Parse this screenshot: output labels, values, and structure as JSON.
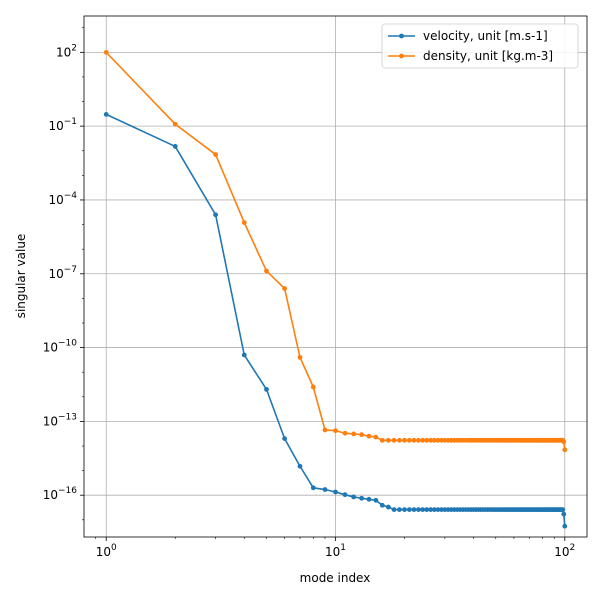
{
  "chart_data": {
    "type": "line",
    "xlabel": "mode index",
    "ylabel": "singular value",
    "xscale": "log",
    "yscale": "log",
    "xlim": [
      0.8,
      125
    ],
    "ylim": [
      2e-18,
      3000
    ],
    "grid": true,
    "legend_position": "top-right",
    "x_ticks": [
      {
        "value": 1,
        "base": "10",
        "exp": "0"
      },
      {
        "value": 10,
        "base": "10",
        "exp": "1"
      },
      {
        "value": 100,
        "base": "10",
        "exp": "2"
      }
    ],
    "y_ticks": [
      {
        "value": 1e-16,
        "base": "10",
        "exp": "−16"
      },
      {
        "value": 1e-13,
        "base": "10",
        "exp": "−13"
      },
      {
        "value": 1e-10,
        "base": "10",
        "exp": "−10"
      },
      {
        "value": 1e-07,
        "base": "10",
        "exp": "−7"
      },
      {
        "value": 0.0001,
        "base": "10",
        "exp": "−4"
      },
      {
        "value": 0.1,
        "base": "10",
        "exp": "−1"
      },
      {
        "value": 100,
        "base": "10",
        "exp": "2"
      }
    ],
    "series": [
      {
        "name": "velocity, unit [m.s-1]",
        "color": "#1f77b4",
        "x": [
          1,
          2,
          3,
          4,
          5,
          6,
          7,
          8,
          9,
          10,
          11,
          12,
          13,
          14,
          15,
          16,
          17,
          18,
          19,
          20,
          21,
          22,
          23,
          24,
          25,
          26,
          27,
          28,
          29,
          30,
          31,
          32,
          33,
          34,
          35,
          36,
          37,
          38,
          39,
          40,
          41,
          42,
          43,
          44,
          45,
          46,
          47,
          48,
          49,
          50,
          51,
          52,
          53,
          54,
          55,
          56,
          57,
          58,
          59,
          60,
          61,
          62,
          63,
          64,
          65,
          66,
          67,
          68,
          69,
          70,
          71,
          72,
          73,
          74,
          75,
          76,
          77,
          78,
          79,
          80,
          81,
          82,
          83,
          84,
          85,
          86,
          87,
          88,
          89,
          90,
          91,
          92,
          93,
          94,
          95,
          96,
          97,
          98,
          99,
          100
        ],
        "y": [
          0.3,
          0.015,
          2.5e-05,
          5e-11,
          2e-12,
          2e-14,
          1.5e-15,
          2e-16,
          1.7e-16,
          1.35e-16,
          1.05e-16,
          8.5e-17,
          7.5e-17,
          6.8e-17,
          6.2e-17,
          3.9e-17,
          3.3e-17,
          2.6e-17,
          2.6e-17,
          2.6e-17,
          2.6e-17,
          2.6e-17,
          2.6e-17,
          2.6e-17,
          2.6e-17,
          2.6e-17,
          2.6e-17,
          2.6e-17,
          2.6e-17,
          2.6e-17,
          2.6e-17,
          2.6e-17,
          2.6e-17,
          2.6e-17,
          2.6e-17,
          2.6e-17,
          2.6e-17,
          2.6e-17,
          2.6e-17,
          2.6e-17,
          2.6e-17,
          2.6e-17,
          2.6e-17,
          2.6e-17,
          2.6e-17,
          2.6e-17,
          2.6e-17,
          2.6e-17,
          2.6e-17,
          2.6e-17,
          2.6e-17,
          2.6e-17,
          2.6e-17,
          2.6e-17,
          2.6e-17,
          2.6e-17,
          2.6e-17,
          2.6e-17,
          2.6e-17,
          2.6e-17,
          2.6e-17,
          2.6e-17,
          2.6e-17,
          2.6e-17,
          2.6e-17,
          2.6e-17,
          2.6e-17,
          2.6e-17,
          2.6e-17,
          2.6e-17,
          2.6e-17,
          2.6e-17,
          2.6e-17,
          2.6e-17,
          2.6e-17,
          2.6e-17,
          2.6e-17,
          2.6e-17,
          2.6e-17,
          2.6e-17,
          2.6e-17,
          2.6e-17,
          2.6e-17,
          2.6e-17,
          2.6e-17,
          2.6e-17,
          2.6e-17,
          2.6e-17,
          2.6e-17,
          2.6e-17,
          2.6e-17,
          2.6e-17,
          2.6e-17,
          2.6e-17,
          2.6e-17,
          2.6e-17,
          2.6e-17,
          2.6e-17,
          1.7e-17,
          5.5e-18
        ]
      },
      {
        "name": "density, unit [kg.m-3]",
        "color": "#ff7f0e",
        "x": [
          1,
          2,
          3,
          4,
          5,
          6,
          7,
          8,
          9,
          10,
          11,
          12,
          13,
          14,
          15,
          16,
          17,
          18,
          19,
          20,
          21,
          22,
          23,
          24,
          25,
          26,
          27,
          28,
          29,
          30,
          31,
          32,
          33,
          34,
          35,
          36,
          37,
          38,
          39,
          40,
          41,
          42,
          43,
          44,
          45,
          46,
          47,
          48,
          49,
          50,
          51,
          52,
          53,
          54,
          55,
          56,
          57,
          58,
          59,
          60,
          61,
          62,
          63,
          64,
          65,
          66,
          67,
          68,
          69,
          70,
          71,
          72,
          73,
          74,
          75,
          76,
          77,
          78,
          79,
          80,
          81,
          82,
          83,
          84,
          85,
          86,
          87,
          88,
          89,
          90,
          91,
          92,
          93,
          94,
          95,
          96,
          97,
          98,
          99,
          100
        ],
        "y": [
          100,
          0.12,
          0.007,
          1.2e-05,
          1.3e-07,
          2.5e-08,
          4e-11,
          2.5e-12,
          4.5e-14,
          4.2e-14,
          3.3e-14,
          3.1e-14,
          2.9e-14,
          2.5e-14,
          2.3e-14,
          1.7e-14,
          1.7e-14,
          1.7e-14,
          1.7e-14,
          1.7e-14,
          1.7e-14,
          1.7e-14,
          1.7e-14,
          1.7e-14,
          1.7e-14,
          1.7e-14,
          1.7e-14,
          1.7e-14,
          1.7e-14,
          1.7e-14,
          1.7e-14,
          1.7e-14,
          1.7e-14,
          1.7e-14,
          1.7e-14,
          1.7e-14,
          1.7e-14,
          1.7e-14,
          1.7e-14,
          1.7e-14,
          1.7e-14,
          1.7e-14,
          1.7e-14,
          1.7e-14,
          1.7e-14,
          1.7e-14,
          1.7e-14,
          1.7e-14,
          1.7e-14,
          1.7e-14,
          1.7e-14,
          1.7e-14,
          1.7e-14,
          1.7e-14,
          1.7e-14,
          1.7e-14,
          1.7e-14,
          1.7e-14,
          1.7e-14,
          1.7e-14,
          1.7e-14,
          1.7e-14,
          1.7e-14,
          1.7e-14,
          1.7e-14,
          1.7e-14,
          1.7e-14,
          1.7e-14,
          1.7e-14,
          1.7e-14,
          1.7e-14,
          1.7e-14,
          1.7e-14,
          1.7e-14,
          1.7e-14,
          1.7e-14,
          1.7e-14,
          1.7e-14,
          1.7e-14,
          1.7e-14,
          1.7e-14,
          1.7e-14,
          1.7e-14,
          1.7e-14,
          1.7e-14,
          1.7e-14,
          1.7e-14,
          1.7e-14,
          1.7e-14,
          1.7e-14,
          1.7e-14,
          1.7e-14,
          1.7e-14,
          1.7e-14,
          1.7e-14,
          1.7e-14,
          1.7e-14,
          1.7e-14,
          1.5e-14,
          7e-15
        ]
      }
    ]
  }
}
